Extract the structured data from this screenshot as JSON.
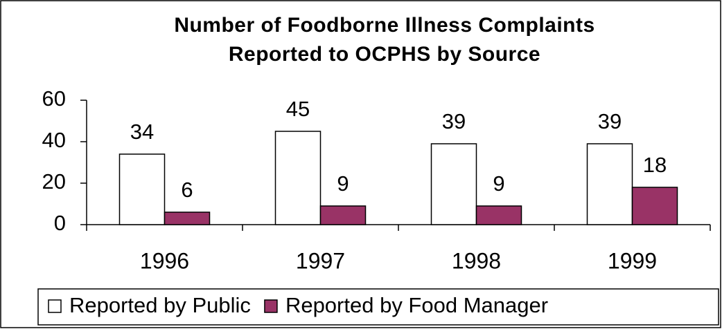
{
  "chart_data": {
    "type": "bar",
    "title": "Number of Foodborne Illness Complaints Reported to OCPHS by Source",
    "categories": [
      "1996",
      "1997",
      "1998",
      "1999"
    ],
    "series": [
      {
        "name": "Reported by Public",
        "color": "#ffffff",
        "values": [
          34,
          45,
          39,
          39
        ]
      },
      {
        "name": "Reported by Food Manager",
        "color": "#993366",
        "values": [
          6,
          9,
          9,
          18
        ]
      }
    ],
    "ylim": [
      0,
      60
    ],
    "yticks": [
      0,
      20,
      40,
      60
    ],
    "grid": false,
    "legend": "bottom"
  }
}
